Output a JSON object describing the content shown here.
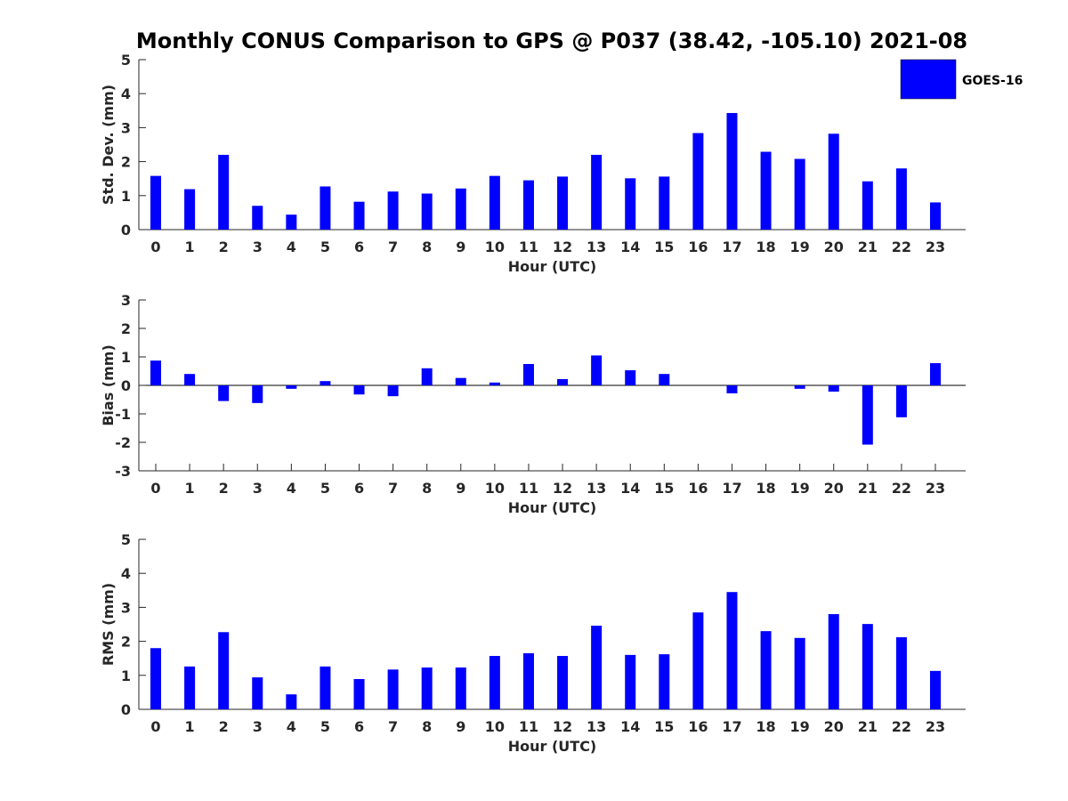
{
  "chart_data": {
    "title": "Monthly CONUS Comparison to GPS @ P037 (38.42, -105.10) 2021-08",
    "legend": {
      "label": "GOES-16",
      "color": "#0000ff",
      "placement": "top-right"
    },
    "panels": [
      {
        "type": "bar",
        "ylabel": "Std. Dev. (mm)",
        "xlabel": "Hour (UTC)",
        "ylim": [
          0,
          5
        ],
        "yticks": [
          0,
          1,
          2,
          3,
          4,
          5
        ],
        "categories": [
          0,
          1,
          2,
          3,
          4,
          5,
          6,
          7,
          8,
          9,
          10,
          11,
          12,
          13,
          14,
          15,
          16,
          17,
          18,
          19,
          20,
          21,
          22,
          23
        ],
        "series": [
          {
            "name": "GOES-16",
            "values": [
              1.58,
              1.19,
              2.2,
              0.7,
              0.44,
              1.27,
              0.82,
              1.12,
              1.06,
              1.21,
              1.58,
              1.45,
              1.56,
              2.2,
              1.51,
              1.56,
              2.84,
              3.43,
              2.29,
              2.08,
              2.82,
              1.42,
              1.8,
              0.8
            ]
          }
        ]
      },
      {
        "type": "bar",
        "ylabel": "Bias (mm)",
        "xlabel": "Hour (UTC)",
        "ylim": [
          -3,
          3
        ],
        "yticks": [
          -3,
          -2,
          -1,
          0,
          1,
          2,
          3
        ],
        "zero_line": true,
        "categories": [
          0,
          1,
          2,
          3,
          4,
          5,
          6,
          7,
          8,
          9,
          10,
          11,
          12,
          13,
          14,
          15,
          16,
          17,
          18,
          19,
          20,
          21,
          22,
          23
        ],
        "series": [
          {
            "name": "GOES-16",
            "values": [
              0.87,
              0.4,
              -0.55,
              -0.62,
              -0.12,
              0.15,
              -0.32,
              -0.38,
              0.6,
              0.26,
              0.1,
              0.75,
              0.22,
              1.05,
              0.53,
              0.4,
              0,
              -0.28,
              0,
              -0.12,
              -0.22,
              -2.08,
              -1.12,
              0.78
            ]
          }
        ]
      },
      {
        "type": "bar",
        "ylabel": "RMS (mm)",
        "xlabel": "Hour (UTC)",
        "ylim": [
          0,
          5
        ],
        "yticks": [
          0,
          1,
          2,
          3,
          4,
          5
        ],
        "categories": [
          0,
          1,
          2,
          3,
          4,
          5,
          6,
          7,
          8,
          9,
          10,
          11,
          12,
          13,
          14,
          15,
          16,
          17,
          18,
          19,
          20,
          21,
          22,
          23
        ],
        "series": [
          {
            "name": "GOES-16",
            "values": [
              1.8,
              1.26,
              2.27,
              0.94,
              0.44,
              1.26,
              0.89,
              1.17,
              1.23,
              1.23,
              1.57,
              1.65,
              1.57,
              2.46,
              1.6,
              1.62,
              2.85,
              3.45,
              2.3,
              2.1,
              2.8,
              2.51,
              2.12,
              1.13
            ]
          }
        ]
      }
    ]
  }
}
